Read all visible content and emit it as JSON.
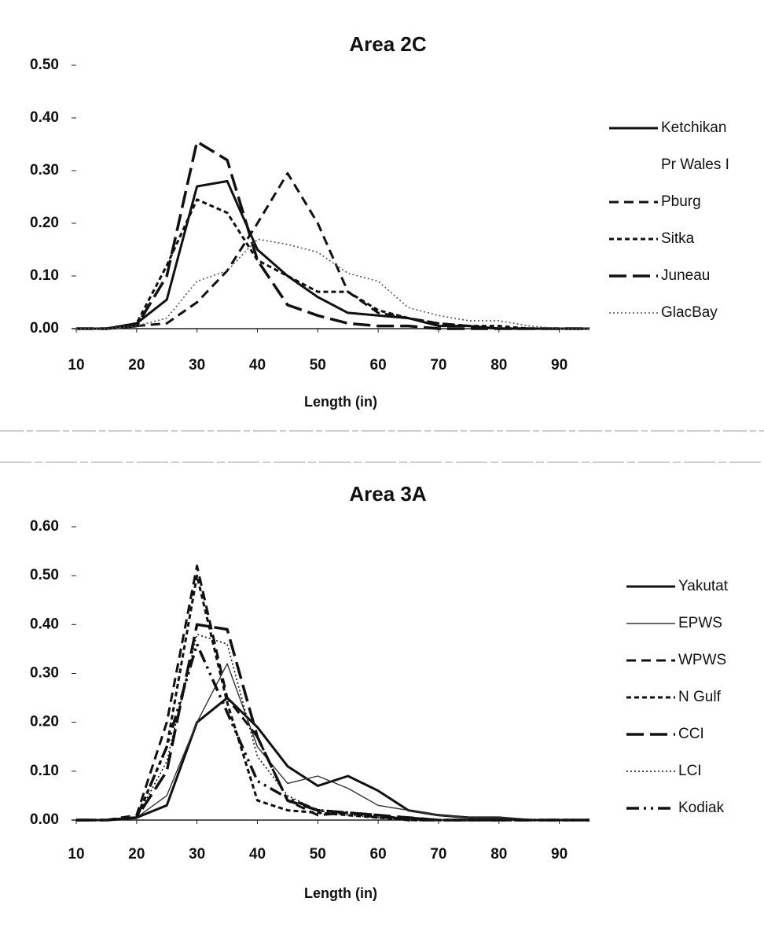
{
  "chart_data": [
    {
      "type": "line",
      "title": "Area 2C",
      "x_label": "Length (in)",
      "x": [
        10,
        15,
        20,
        25,
        30,
        35,
        40,
        45,
        50,
        55,
        60,
        65,
        70,
        75,
        80,
        85,
        90,
        95
      ],
      "xlim": [
        10,
        95
      ],
      "xticks": [
        10,
        20,
        30,
        40,
        50,
        60,
        70,
        80,
        90
      ],
      "ylim": [
        0,
        0.5
      ],
      "yticks": [
        {
          "value": 0,
          "label": "0.00"
        },
        {
          "value": 0.1,
          "label": "0.10"
        },
        {
          "value": 0.2,
          "label": "0.20"
        },
        {
          "value": 0.3,
          "label": "0.30"
        },
        {
          "value": 0.4,
          "label": "0.40"
        },
        {
          "value": 0.5,
          "label": "0.50"
        }
      ],
      "legend": "right",
      "grid": false,
      "series": [
        {
          "name": "Ketchikan",
          "color": "#111111",
          "style": "solid",
          "values": [
            0,
            0,
            0.01,
            0.055,
            0.27,
            0.28,
            0.15,
            0.1,
            0.06,
            0.03,
            0.025,
            0.02,
            0.005,
            0.005,
            0,
            0,
            0,
            0
          ]
        },
        {
          "name": "Pr Wales I",
          "color": "#ffffff",
          "style": "solid",
          "values": [
            null,
            null,
            null,
            null,
            null,
            null,
            null,
            null,
            null,
            null,
            null,
            null,
            null,
            null,
            null,
            null,
            null,
            null
          ]
        },
        {
          "name": "Pburg",
          "color": "#111111",
          "style": "dash",
          "values": [
            0,
            0,
            0.005,
            0.01,
            0.05,
            0.11,
            0.2,
            0.295,
            0.2,
            0.07,
            0.03,
            0.02,
            0.01,
            0.005,
            0,
            0,
            0,
            0
          ]
        },
        {
          "name": "Sitka",
          "color": "#111111",
          "style": "shortdash",
          "values": [
            0,
            0,
            0.01,
            0.12,
            0.245,
            0.22,
            0.13,
            0.1,
            0.07,
            0.07,
            0.035,
            0.02,
            0.01,
            0.005,
            0.005,
            0,
            0,
            0
          ]
        },
        {
          "name": "Juneau",
          "color": "#111111",
          "style": "longdash",
          "values": [
            0,
            0,
            0.005,
            0.1,
            0.355,
            0.32,
            0.13,
            0.045,
            0.025,
            0.01,
            0.005,
            0.005,
            0,
            0,
            0,
            0,
            0,
            0
          ]
        },
        {
          "name": "GlacBay",
          "color": "#555555",
          "style": "dot",
          "values": [
            0,
            0,
            0.005,
            0.02,
            0.09,
            0.11,
            0.17,
            0.16,
            0.145,
            0.105,
            0.09,
            0.04,
            0.025,
            0.015,
            0.015,
            0.005,
            0,
            0
          ]
        }
      ]
    },
    {
      "type": "line",
      "title": "Area 3A",
      "x_label": "Length (in)",
      "x": [
        10,
        15,
        20,
        25,
        30,
        35,
        40,
        45,
        50,
        55,
        60,
        65,
        70,
        75,
        80,
        85,
        90,
        95
      ],
      "xlim": [
        10,
        95
      ],
      "xticks": [
        10,
        20,
        30,
        40,
        50,
        60,
        70,
        80,
        90
      ],
      "ylim": [
        0,
        0.6
      ],
      "yticks": [
        {
          "value": 0,
          "label": "0.00"
        },
        {
          "value": 0.1,
          "label": "0.10"
        },
        {
          "value": 0.2,
          "label": "0.20"
        },
        {
          "value": 0.3,
          "label": "0.30"
        },
        {
          "value": 0.4,
          "label": "0.40"
        },
        {
          "value": 0.5,
          "label": "0.50"
        },
        {
          "value": 0.6,
          "label": "0.60"
        }
      ],
      "legend": "right",
      "grid": false,
      "series": [
        {
          "name": "Yakutat",
          "color": "#111111",
          "style": "solid",
          "values": [
            0,
            0,
            0.005,
            0.03,
            0.2,
            0.25,
            0.19,
            0.11,
            0.07,
            0.09,
            0.06,
            0.02,
            0.01,
            0.005,
            0.005,
            0,
            0,
            0
          ]
        },
        {
          "name": "EPWS",
          "color": "#333333",
          "style": "thin",
          "values": [
            0,
            0,
            0.005,
            0.05,
            0.2,
            0.32,
            0.15,
            0.075,
            0.09,
            0.065,
            0.03,
            0.02,
            0.01,
            0.005,
            0.005,
            0,
            0,
            0
          ]
        },
        {
          "name": "WPWS",
          "color": "#111111",
          "style": "dash",
          "values": [
            0,
            0,
            0.01,
            0.2,
            0.52,
            0.25,
            0.17,
            0.04,
            0.01,
            0.015,
            0.005,
            0.005,
            0,
            0,
            0,
            0,
            0,
            0
          ]
        },
        {
          "name": "N Gulf",
          "color": "#111111",
          "style": "shortdash",
          "values": [
            0,
            0,
            0.005,
            0.15,
            0.5,
            0.24,
            0.04,
            0.02,
            0.015,
            0.01,
            0.005,
            0,
            0,
            0,
            0,
            0,
            0,
            0
          ]
        },
        {
          "name": "CCI",
          "color": "#111111",
          "style": "longdash",
          "values": [
            0,
            0,
            0.005,
            0.1,
            0.4,
            0.39,
            0.17,
            0.04,
            0.02,
            0.015,
            0.01,
            0.005,
            0,
            0,
            0,
            0,
            0,
            0
          ]
        },
        {
          "name": "LCI",
          "color": "#111111",
          "style": "dot",
          "values": [
            0,
            0,
            0.005,
            0.12,
            0.38,
            0.36,
            0.13,
            0.05,
            0.02,
            0.01,
            0.005,
            0,
            0,
            0,
            0,
            0,
            0,
            0
          ]
        },
        {
          "name": "Kodiak",
          "color": "#111111",
          "style": "dashdot",
          "values": [
            0,
            0,
            0.005,
            0.15,
            0.36,
            0.22,
            0.08,
            0.045,
            0.02,
            0.015,
            0.01,
            0,
            0,
            0,
            0,
            0,
            0,
            0
          ]
        }
      ]
    }
  ]
}
